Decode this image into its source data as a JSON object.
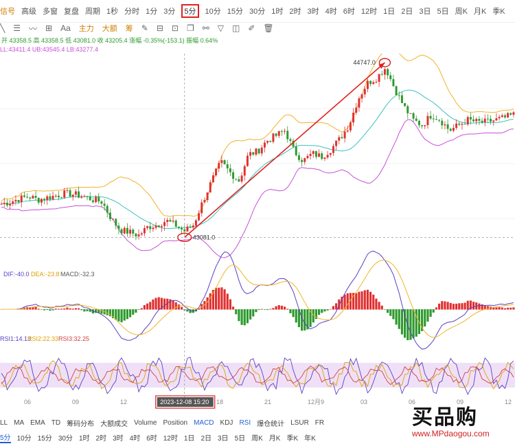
{
  "topbar": {
    "items": [
      "信号",
      "高级",
      "多窗",
      "复盘",
      "周期",
      "1秒",
      "分时",
      "1分",
      "3分",
      "5分",
      "10分",
      "15分",
      "30分",
      "1时",
      "2时",
      "3时",
      "4时",
      "6时",
      "12时",
      "1日",
      "2日",
      "3日",
      "5日",
      "周K",
      "月K",
      "季K"
    ],
    "selected_index": 9
  },
  "toolbar": {
    "items": [
      "主力",
      "大额",
      "筹"
    ]
  },
  "ohlc": {
    "text": "开 43358.5 高 43358.5 低 43081.0 收 43205.4 涨幅 -0.35%(-153.1) 振幅 0.64%"
  },
  "boll": {
    "text": "LL:43411.4 UB:43545.4 LB:43277.4"
  },
  "macd_legend": {
    "dif": "DIF:-40.0",
    "dea": "DEA:-23.8",
    "macd": "MACD:-32.3"
  },
  "rsi_legend": {
    "r1": "RSI1:14.13",
    "r2": "RSI2:22.33",
    "r3": "RSI3:32.25"
  },
  "crosshair": {
    "price_label": "43081.0",
    "time_label": "2023-12-08 15:20"
  },
  "annotations": {
    "high_label": "44747.0",
    "low_label": "43081.0"
  },
  "x_ticks": [
    "06",
    "09",
    "12",
    "15",
    "18",
    "21",
    "12月9",
    "03",
    "06",
    "09",
    "12"
  ],
  "bottom_tabs1": [
    "LL",
    "MA",
    "EMA",
    "TD",
    "筹码分布",
    "大额成交",
    "Volume",
    "Position",
    "MACD",
    "KDJ",
    "RSI",
    "爆仓统计",
    "LSUR",
    "FR"
  ],
  "bottom_tabs2": [
    "5分",
    "10分",
    "15分",
    "30分",
    "1时",
    "2时",
    "3时",
    "4时",
    "6时",
    "12时",
    "1日",
    "2日",
    "3日",
    "5日",
    "周K",
    "月K",
    "季K",
    "年K"
  ],
  "watermark": {
    "main": "买品购",
    "url": "www.MPdaogou.com"
  },
  "colors": {
    "up": "#e03030",
    "down": "#2e9a2e",
    "upper_band": "#f0b429",
    "lower_band": "#c84fd8",
    "mid_band": "#3cc0c0",
    "arrow": "#e02020",
    "dif": "#5a3fc0",
    "dea": "#f0b429"
  },
  "chart_data": {
    "type": "candlestick",
    "title": "",
    "interval": "5分",
    "ylim": [
      42900,
      44800
    ],
    "close_path": [
      43400,
      43420,
      43450,
      43470,
      43440,
      43460,
      43480,
      43500,
      43490,
      43470,
      43440,
      43420,
      43260,
      43150,
      43130,
      43100,
      43180,
      43200,
      43240,
      43200,
      43140,
      43200,
      43420,
      43620,
      43800,
      43700,
      43620,
      43870,
      43900,
      44000,
      44050,
      44100,
      43900,
      43810,
      43880,
      43850,
      43920,
      44020,
      44150,
      44400,
      44550,
      44600,
      44700,
      44500,
      44330,
      44200,
      44150,
      44250,
      44200,
      44100,
      44150,
      44200,
      44180,
      44180,
      44200,
      44220,
      44250
    ]
  }
}
